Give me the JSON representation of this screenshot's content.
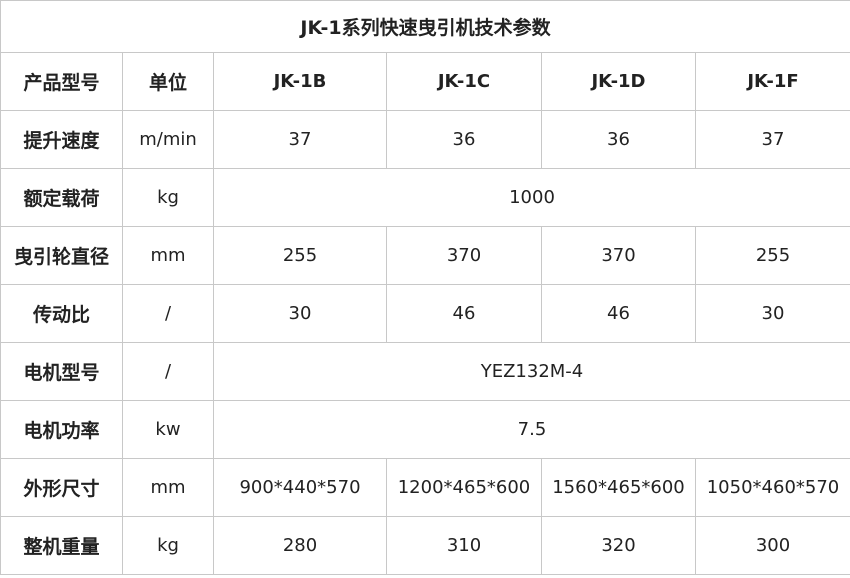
{
  "title": "JK-1系列快速曳引机技术参数",
  "header": {
    "label": "产品型号",
    "unit": "单位",
    "models": [
      "JK-1B",
      "JK-1C",
      "JK-1D",
      "JK-1F"
    ]
  },
  "rows": [
    {
      "label": "提升速度",
      "unit": "m/min",
      "values": [
        "37",
        "36",
        "36",
        "37"
      ]
    },
    {
      "label": "额定载荷",
      "unit": "kg",
      "merged": "1000"
    },
    {
      "label": "曳引轮直径",
      "unit": "mm",
      "values": [
        "255",
        "370",
        "370",
        "255"
      ]
    },
    {
      "label": "传动比",
      "unit": "/",
      "values": [
        "30",
        "46",
        "46",
        "30"
      ]
    },
    {
      "label": "电机型号",
      "unit": "/",
      "merged": "YEZ132M-4"
    },
    {
      "label": "电机功率",
      "unit": "kw",
      "merged": "7.5"
    },
    {
      "label": "外形尺寸",
      "unit": "mm",
      "values": [
        "900*440*570",
        "1200*465*600",
        "1560*465*600",
        "1050*460*570"
      ]
    },
    {
      "label": "整机重量",
      "unit": "kg",
      "values": [
        "280",
        "310",
        "320",
        "300"
      ]
    }
  ]
}
